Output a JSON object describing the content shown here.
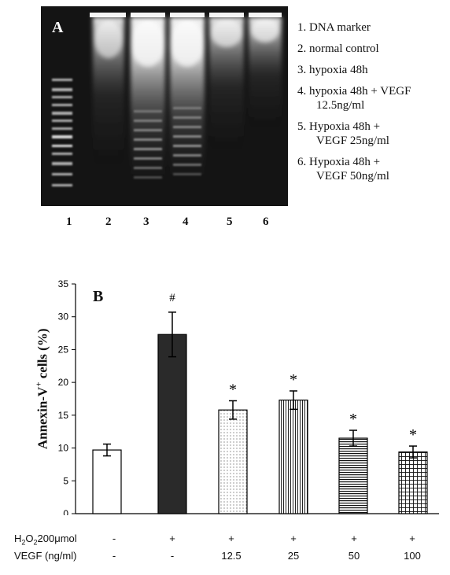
{
  "panel_a": {
    "label": "A",
    "legend": [
      {
        "num": "1.",
        "lines": [
          "DNA marker"
        ]
      },
      {
        "num": "2.",
        "lines": [
          "normal control"
        ]
      },
      {
        "num": "3.",
        "lines": [
          "hypoxia 48h"
        ]
      },
      {
        "num": "4.",
        "lines": [
          "hypoxia 48h + VEGF",
          "12.5ng/ml"
        ]
      },
      {
        "num": "5.",
        "lines": [
          "Hypoxia 48h +",
          "VEGF 25ng/ml"
        ]
      },
      {
        "num": "6.",
        "lines": [
          "Hypoxia 48h +",
          "VEGF 50ng/ml"
        ]
      }
    ],
    "lanes": [
      "1",
      "2",
      "3",
      "4",
      "5",
      "6"
    ]
  },
  "chart_data": {
    "type": "bar",
    "panel_label": "B",
    "ylabel_main": "Annexin-V",
    "ylabel_sup": "+",
    "ylabel_rest": " cells (%)",
    "ylim": [
      0,
      35
    ],
    "yticks": [
      0,
      5,
      10,
      15,
      20,
      25,
      30,
      35
    ],
    "values": [
      9.7,
      27.3,
      15.8,
      17.3,
      11.5,
      9.4
    ],
    "errors": [
      0.9,
      3.4,
      1.4,
      1.4,
      1.2,
      0.9
    ],
    "annotations": [
      "",
      "#",
      "*",
      "*",
      "*",
      "*"
    ],
    "fills": [
      "#ffffff",
      "#2a2a2a",
      "dots",
      "vlines",
      "hlines",
      "grid"
    ],
    "rows": [
      {
        "label_parts": [
          "H",
          "2",
          "O",
          "2",
          "200μmol"
        ],
        "values": [
          "-",
          "+",
          "+",
          "+",
          "+",
          "+"
        ]
      },
      {
        "label_parts": [
          "VEGF (ng/ml)"
        ],
        "values": [
          "-",
          "-",
          "12.5",
          "25",
          "50",
          "100"
        ]
      }
    ]
  }
}
